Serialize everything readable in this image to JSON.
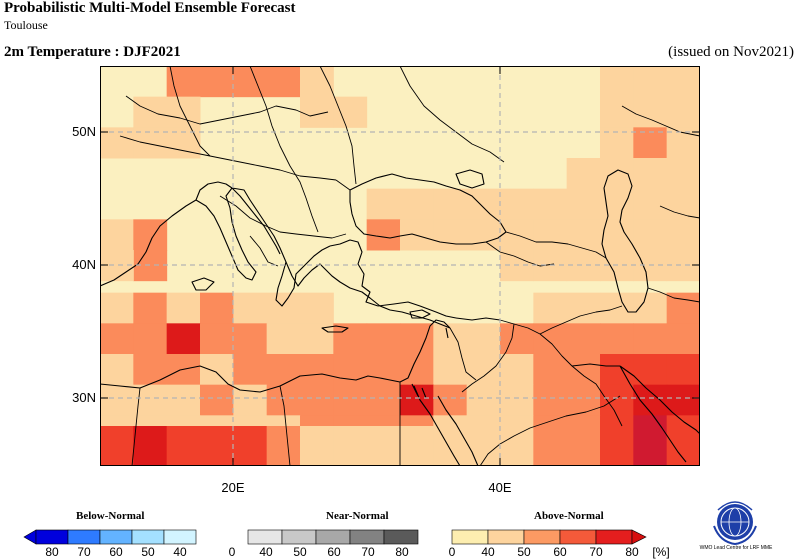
{
  "header": {
    "title": "Probabilistic Multi-Model Ensemble Forecast",
    "subtitle": "Toulouse",
    "variable": "2m Temperature : DJF2021",
    "issued": "(issued on Nov2021)"
  },
  "axes": {
    "lat_labels": [
      "50N",
      "40N",
      "30N"
    ],
    "lon_labels": [
      "20E",
      "40E"
    ]
  },
  "legend": {
    "categories": [
      "Below-Normal",
      "Near-Normal",
      "Above-Normal"
    ],
    "below_ticks": [
      "80",
      "70",
      "60",
      "50",
      "40"
    ],
    "near_ticks": [
      "0",
      "40",
      "50",
      "60",
      "70",
      "80"
    ],
    "above_ticks": [
      "0",
      "40",
      "50",
      "60",
      "70",
      "80"
    ],
    "unit": "[%]",
    "below_colors": [
      "#0000dd",
      "#2e7bff",
      "#63b3ff",
      "#a4e0ff",
      "#d2f4ff"
    ],
    "near_colors": [
      "#e6e6e6",
      "#c8c8c8",
      "#a8a8a8",
      "#828282",
      "#5a5a5a"
    ],
    "above_colors": [
      "#fdeeb0",
      "#fdd49e",
      "#fc9a63",
      "#f45a3a",
      "#e41e1e"
    ]
  },
  "logo": {
    "text": "WMO Lead Centre for LRF MME"
  },
  "map_colors": {
    "base": "#fbf0c0",
    "above_40": "#fdd49e",
    "above_60": "#fb8b5b",
    "above_70": "#f0402b",
    "above_80": "#dd1a1a",
    "above_80_dark": "#d01a30"
  }
}
